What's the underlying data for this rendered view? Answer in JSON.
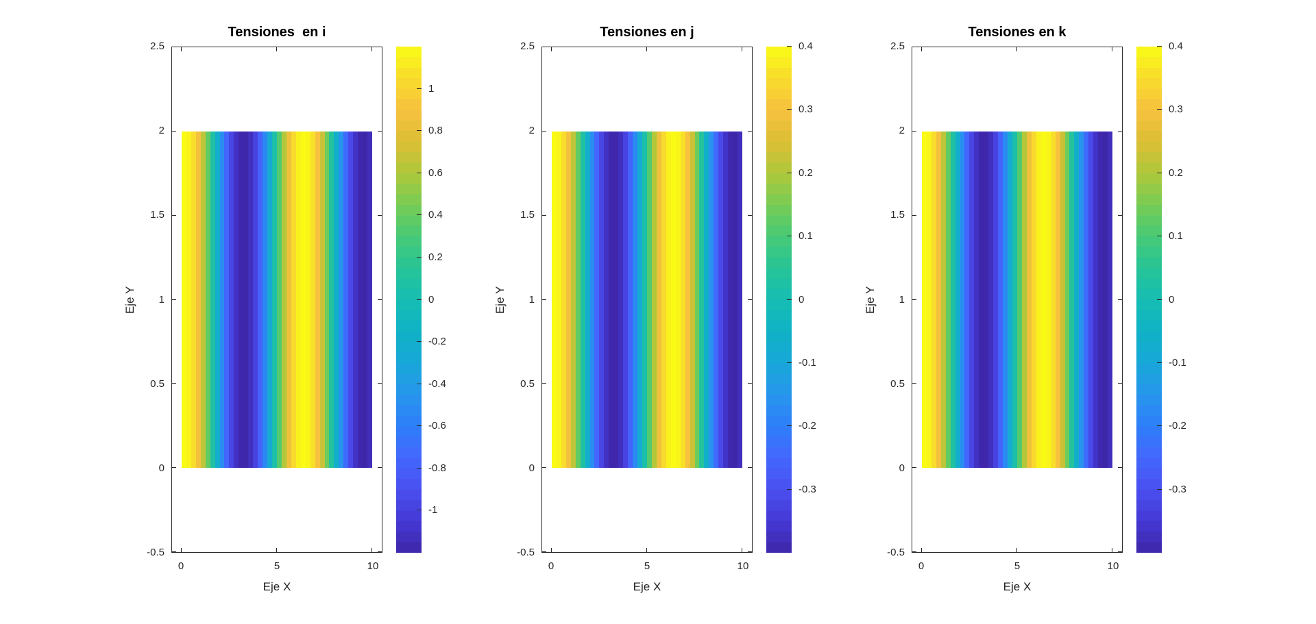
{
  "figure": {
    "background": "#ffffff",
    "axis_color": "#262626",
    "title_color": "#000000"
  },
  "colormap": {
    "name": "parula",
    "stops": [
      [
        0.0,
        "#3E26A8"
      ],
      [
        0.0625,
        "#4438D4"
      ],
      [
        0.125,
        "#4A4FF0"
      ],
      [
        0.1875,
        "#4367FD"
      ],
      [
        0.25,
        "#2E7EF9"
      ],
      [
        0.3125,
        "#2796EC"
      ],
      [
        0.375,
        "#19A7D8"
      ],
      [
        0.4375,
        "#0FB2C5"
      ],
      [
        0.5,
        "#16BDB2"
      ],
      [
        0.5625,
        "#27C498"
      ],
      [
        0.625,
        "#47CA76"
      ],
      [
        0.6875,
        "#77CB54"
      ],
      [
        0.75,
        "#AFC83C"
      ],
      [
        0.8125,
        "#DCBE35"
      ],
      [
        0.875,
        "#F7C13E"
      ],
      [
        0.9375,
        "#F8DC2C"
      ],
      [
        1.0,
        "#F9FB15"
      ]
    ]
  },
  "chart_data": [
    {
      "type": "heatmap",
      "title": "Tensiones  en i",
      "xlabel": "Eje X",
      "ylabel": "Eje Y",
      "xlim": [
        -0.5,
        10.5
      ],
      "ylim": [
        -0.5,
        2.5
      ],
      "xtick_values": [
        0,
        5,
        10
      ],
      "xtick_labels": [
        "0",
        "5",
        "10"
      ],
      "ytick_values": [
        -0.5,
        0,
        0.5,
        1,
        1.5,
        2,
        2.5
      ],
      "ytick_labels": [
        "-0.5",
        "0",
        "0.5",
        "1",
        "1.5",
        "2",
        "2.5"
      ],
      "x_extent": [
        0,
        10
      ],
      "y_extent": [
        0,
        2
      ],
      "x_step": 0.25,
      "values": [
        1.2,
        1.163,
        1.053,
        0.878,
        0.648,
        0.378,
        0.085,
        -0.214,
        -0.499,
        -0.754,
        -0.961,
        -1.109,
        -1.188,
        -1.193,
        -1.124,
        -0.985,
        -0.784,
        -0.535,
        -0.253,
        0.045,
        0.34,
        0.615,
        0.85,
        1.034,
        1.152,
        1.2,
        1.172,
        1.07,
        0.905,
        0.686,
        0.416,
        0.124,
        -0.175,
        -0.463,
        -0.722,
        -0.937,
        -1.093,
        -1.182,
        -1.197,
        -1.137
      ],
      "clim": [
        -1.2,
        1.2
      ],
      "colorbar_tick_values": [
        1,
        0.8,
        0.6,
        0.4,
        0.2,
        0,
        -0.2,
        -0.4,
        -0.6,
        -0.8,
        -1
      ],
      "colorbar_tick_labels": [
        "1",
        "0.8",
        "0.6",
        "0.4",
        "0.2",
        "0",
        "-0.2",
        "-0.4",
        "-0.6",
        "-0.8",
        "-1"
      ]
    },
    {
      "type": "heatmap",
      "title": "Tensiones en j",
      "xlabel": "Eje X",
      "ylabel": "Eje Y",
      "xlim": [
        -0.5,
        10.5
      ],
      "ylim": [
        -0.5,
        2.5
      ],
      "xtick_values": [
        0,
        5,
        10
      ],
      "xtick_labels": [
        "0",
        "5",
        "10"
      ],
      "ytick_values": [
        -0.5,
        0,
        0.5,
        1,
        1.5,
        2,
        2.5
      ],
      "ytick_labels": [
        "-0.5",
        "0",
        "0.5",
        "1",
        "1.5",
        "2",
        "2.5"
      ],
      "x_extent": [
        0,
        10
      ],
      "y_extent": [
        0,
        2
      ],
      "x_step": 0.25,
      "values": [
        0.4,
        0.388,
        0.351,
        0.293,
        0.216,
        0.126,
        0.028,
        -0.071,
        -0.166,
        -0.251,
        -0.32,
        -0.37,
        -0.396,
        -0.398,
        -0.375,
        -0.328,
        -0.261,
        -0.178,
        -0.084,
        0.015,
        0.113,
        0.205,
        0.283,
        0.345,
        0.384,
        0.4,
        0.391,
        0.357,
        0.302,
        0.229,
        0.139,
        0.041,
        -0.058,
        -0.154,
        -0.241,
        -0.312,
        -0.364,
        -0.394,
        -0.399,
        -0.379
      ],
      "clim": [
        -0.4,
        0.4
      ],
      "colorbar_tick_values": [
        0.4,
        0.3,
        0.2,
        0.1,
        0,
        -0.1,
        -0.2,
        -0.3
      ],
      "colorbar_tick_labels": [
        "0.4",
        "0.3",
        "0.2",
        "0.1",
        "0",
        "-0.1",
        "-0.2",
        "-0.3"
      ]
    },
    {
      "type": "heatmap",
      "title": "Tensiones en k",
      "xlabel": "Eje X",
      "ylabel": "Eje Y",
      "xlim": [
        -0.5,
        10.5
      ],
      "ylim": [
        -0.5,
        2.5
      ],
      "xtick_values": [
        0,
        5,
        10
      ],
      "xtick_labels": [
        "0",
        "5",
        "10"
      ],
      "ytick_values": [
        -0.5,
        0,
        0.5,
        1,
        1.5,
        2,
        2.5
      ],
      "ytick_labels": [
        "-0.5",
        "0",
        "0.5",
        "1",
        "1.5",
        "2",
        "2.5"
      ],
      "x_extent": [
        0,
        10
      ],
      "y_extent": [
        0,
        2
      ],
      "x_step": 0.25,
      "values": [
        0.4,
        0.388,
        0.351,
        0.293,
        0.216,
        0.126,
        0.028,
        -0.071,
        -0.166,
        -0.251,
        -0.32,
        -0.37,
        -0.396,
        -0.398,
        -0.375,
        -0.328,
        -0.261,
        -0.178,
        -0.084,
        0.015,
        0.113,
        0.205,
        0.283,
        0.345,
        0.384,
        0.4,
        0.391,
        0.357,
        0.302,
        0.229,
        0.139,
        0.041,
        -0.058,
        -0.154,
        -0.241,
        -0.312,
        -0.364,
        -0.394,
        -0.399,
        -0.379
      ],
      "clim": [
        -0.4,
        0.4
      ],
      "colorbar_tick_values": [
        0.4,
        0.3,
        0.2,
        0.1,
        0,
        -0.1,
        -0.2,
        -0.3
      ],
      "colorbar_tick_labels": [
        "0.4",
        "0.3",
        "0.2",
        "0.1",
        "0",
        "-0.1",
        "-0.2",
        "-0.3"
      ]
    }
  ]
}
